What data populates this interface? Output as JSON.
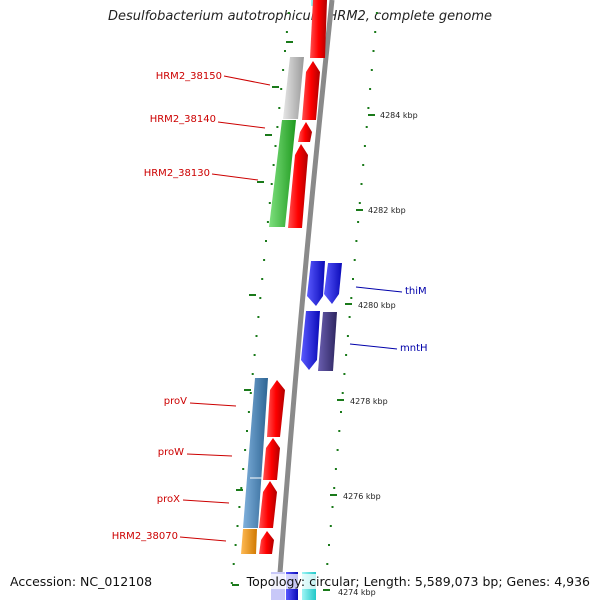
{
  "title": "Desulfobacterium autotrophicum HRM2, complete genome",
  "accession": "Accession: NC_012108",
  "info": "Topology: circular; Length: 5,589,073 bp; Genes: 4,936",
  "ticks": [
    {
      "label": "4284 kbp"
    },
    {
      "label": "4282 kbp"
    },
    {
      "label": "4280 kbp"
    },
    {
      "label": "4278 kbp"
    },
    {
      "label": "4276 kbp"
    },
    {
      "label": "4274 kbp"
    }
  ],
  "genes": [
    {
      "label": "HRM2_38150",
      "color": "#b8b8b8",
      "strand": "outer-left"
    },
    {
      "label": "HRM2_38140",
      "color": "#3cc43c",
      "strand": "outer-left"
    },
    {
      "label": "HRM2_38130",
      "color": "#3cc43c",
      "strand": "outer-left"
    },
    {
      "label": "thiM",
      "color": "#1a1aee",
      "strand": "right"
    },
    {
      "label": "mntH",
      "color": "#4a3f8c",
      "strand": "right"
    },
    {
      "label": "proV",
      "color": "#4682b4",
      "strand": "outer-left"
    },
    {
      "label": "proW",
      "color": "#4682b4",
      "strand": "outer-left"
    },
    {
      "label": "proX",
      "color": "#4682b4",
      "strand": "outer-left"
    },
    {
      "label": "HRM2_38070",
      "color": "#f0960f",
      "strand": "outer-left"
    }
  ],
  "colors": {
    "forward": "#ff0000",
    "reverse": "#1a1aee",
    "backbone": "#888888",
    "tick": "#1a7a1a",
    "label_left": "#cc0000",
    "label_right": "#0000aa",
    "cyan": "#33dddd"
  }
}
